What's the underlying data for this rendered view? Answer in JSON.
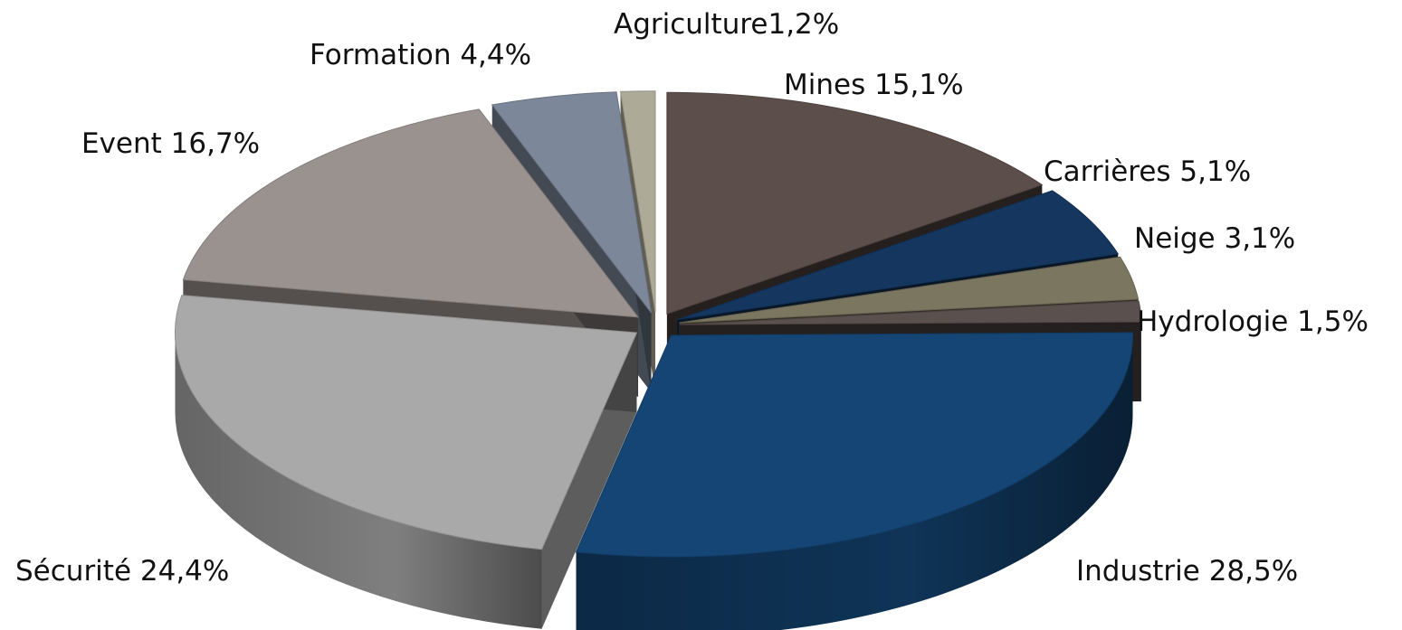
{
  "chart_data": {
    "type": "pie",
    "title": "",
    "slices": [
      {
        "label": "Mines",
        "value": 15.1,
        "text": "Mines 15,1%",
        "color": "#5c4e4a"
      },
      {
        "label": "Carrières",
        "value": 5.1,
        "text": "Carrières 5,1%",
        "color": "#14365f"
      },
      {
        "label": "Neige",
        "value": 3.1,
        "text": "Neige 3,1%",
        "color": "#7a7660"
      },
      {
        "label": "Hydrologie",
        "value": 1.5,
        "text": "Hydrologie 1,5%",
        "color": "#5a504d"
      },
      {
        "label": "Industrie",
        "value": 28.5,
        "text": "Industrie 28,5%",
        "color": "#144574"
      },
      {
        "label": "Sécurité",
        "value": 24.4,
        "text": "Sécurité 24,4%",
        "color": "#a9a9a9"
      },
      {
        "label": "Event",
        "value": 16.7,
        "text": "Event 16,7%",
        "color": "#9a928e"
      },
      {
        "label": "Formation",
        "value": 4.4,
        "text": "Formation 4,4%",
        "color": "#7c8799"
      },
      {
        "label": "Agriculture",
        "value": 1.2,
        "text": "Agriculture1,2%",
        "color": "#aeaa98"
      }
    ],
    "style": "3d-exploded"
  }
}
